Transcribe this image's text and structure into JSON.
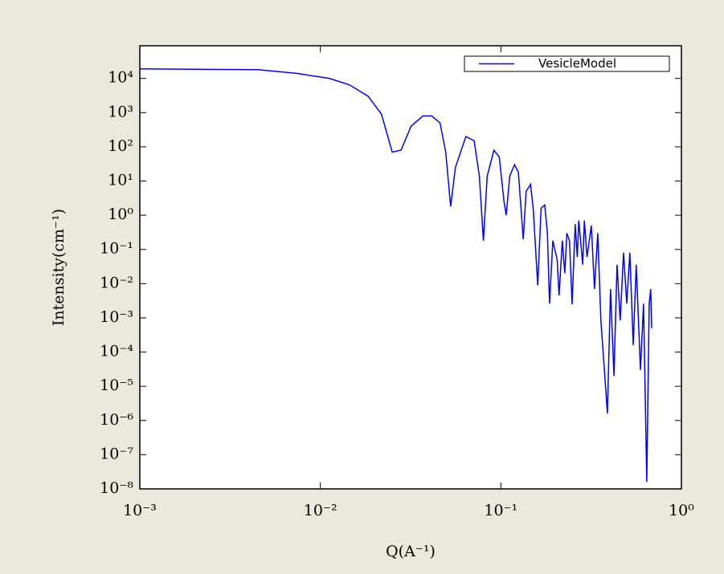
{
  "chart_data": {
    "type": "line",
    "xlabel": "Q(A⁻¹)",
    "ylabel": "Intensity(cm⁻¹)",
    "log_x": true,
    "log_y": true,
    "legend": "upper right",
    "xlim": [
      0.001,
      1
    ],
    "ylim": [
      1e-08,
      90000
    ],
    "xticks": [
      {
        "value": 0.001,
        "label": "10⁻³"
      },
      {
        "value": 0.01,
        "label": "10⁻²"
      },
      {
        "value": 0.1,
        "label": "10⁻¹"
      },
      {
        "value": 1,
        "label": "10⁰"
      }
    ],
    "yticks": [
      {
        "value": 1e-08,
        "label": "10⁻⁸"
      },
      {
        "value": 1e-07,
        "label": "10⁻⁷"
      },
      {
        "value": 1e-06,
        "label": "10⁻⁶"
      },
      {
        "value": 1e-05,
        "label": "10⁻⁵"
      },
      {
        "value": 0.0001,
        "label": "10⁻⁴"
      },
      {
        "value": 0.001,
        "label": "10⁻³"
      },
      {
        "value": 0.01,
        "label": "10⁻²"
      },
      {
        "value": 0.1,
        "label": "10⁻¹"
      },
      {
        "value": 1,
        "label": "10⁰"
      },
      {
        "value": 10,
        "label": "10¹"
      },
      {
        "value": 100,
        "label": "10²"
      },
      {
        "value": 1000,
        "label": "10³"
      },
      {
        "value": 10000,
        "label": "10⁴"
      }
    ],
    "x": [
      0.001,
      0.0045,
      0.0074,
      0.0112,
      0.0145,
      0.0184,
      0.0218,
      0.025,
      0.028,
      0.0318,
      0.037,
      0.0414,
      0.046,
      0.0495,
      0.0527,
      0.056,
      0.064,
      0.0711,
      0.076,
      0.08,
      0.084,
      0.0915,
      0.098,
      0.104,
      0.107,
      0.112,
      0.119,
      0.125,
      0.133,
      0.138,
      0.146,
      0.151,
      0.16,
      0.167,
      0.175,
      0.181,
      0.186,
      0.194,
      0.205,
      0.21,
      0.219,
      0.226,
      0.232,
      0.24,
      0.248,
      0.258,
      0.265,
      0.27,
      0.284,
      0.29,
      0.3,
      0.317,
      0.33,
      0.344,
      0.358,
      0.373,
      0.389,
      0.405,
      0.423,
      0.44,
      0.458,
      0.478,
      0.498,
      0.518,
      0.541,
      0.562,
      0.593,
      0.617,
      0.643,
      0.663,
      0.676,
      0.684
    ],
    "series": [
      {
        "name": "VesicleModel",
        "color": "#0000ff",
        "values": [
          19000,
          18000,
          14000,
          10000,
          6500,
          3000,
          900,
          70,
          80,
          400,
          800,
          800,
          500,
          70,
          1.8,
          25,
          200,
          150,
          14,
          0.18,
          14,
          80,
          50,
          2.6,
          1.0,
          14,
          30,
          18,
          0.2,
          5,
          8,
          1.6,
          0.009,
          1.6,
          2,
          0.3,
          0.0026,
          0.18,
          0.05,
          0.0045,
          0.18,
          0.02,
          0.3,
          0.18,
          0.0025,
          0.55,
          0.06,
          0.7,
          0.036,
          0.7,
          0.06,
          0.5,
          0.007,
          0.3,
          0.00085,
          4e-05,
          1.6e-06,
          0.007,
          2e-05,
          0.036,
          0.00085,
          0.08,
          0.0026,
          0.08,
          0.00016,
          0.036,
          3e-05,
          0.0026,
          1.6e-08,
          0.0026,
          0.007,
          0.0005
        ]
      }
    ]
  }
}
